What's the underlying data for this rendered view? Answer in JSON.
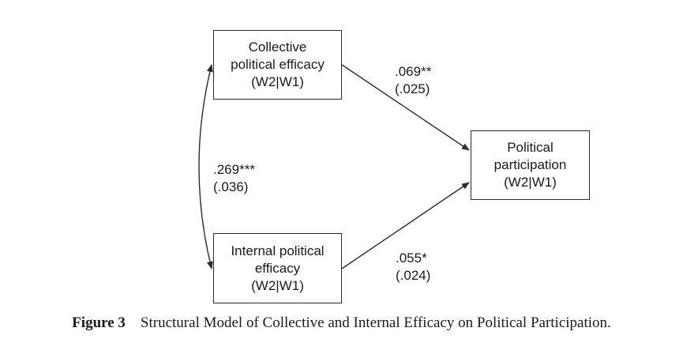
{
  "nodes": {
    "collective": {
      "lines": [
        "Collective",
        "political efficacy",
        "(W2|W1)"
      ]
    },
    "internal": {
      "lines": [
        "Internal political",
        "efficacy",
        "(W2|W1)"
      ]
    },
    "participation": {
      "lines": [
        "Political",
        "participation",
        "(W2|W1)"
      ]
    }
  },
  "paths": {
    "collective_to_participation": {
      "estimate": ".069**",
      "se": "(.025)"
    },
    "internal_to_participation": {
      "estimate": ".055*",
      "se": "(.024)"
    },
    "collective_internal_correlation": {
      "estimate": ".269***",
      "se": "(.036)"
    }
  },
  "caption": {
    "label": "Figure 3",
    "text": "Structural Model of Collective and Internal Efficacy on Political Participation."
  },
  "colors": {
    "stroke": "#2b2b2b",
    "text": "#1a1a1a"
  }
}
